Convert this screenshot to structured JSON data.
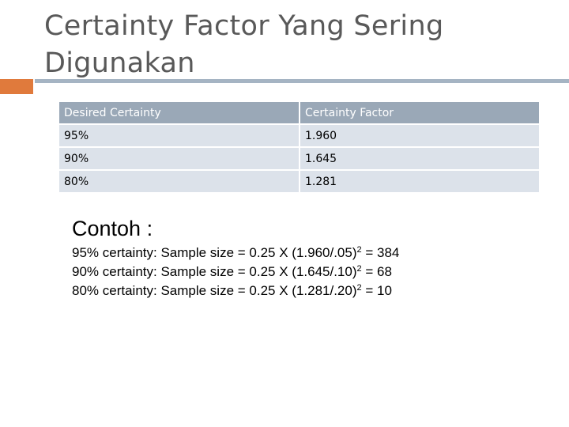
{
  "slide": {
    "title": "Certainty Factor Yang Sering Digunakan"
  },
  "table": {
    "headers": [
      "Desired Certainty",
      "Certainty Factor"
    ],
    "rows": [
      [
        "95%",
        "1.960"
      ],
      [
        "90%",
        "1.645"
      ],
      [
        "80%",
        "1.281"
      ]
    ]
  },
  "example": {
    "title": "Contoh :",
    "lines": [
      {
        "text": "95% certainty: Sample size = 0.25 X (1.960/.05)",
        "sup": "2",
        "result": " = 384"
      },
      {
        "text": "90% certainty: Sample size = 0.25 X (1.645/.10)",
        "sup": "2",
        "result": " = 68"
      },
      {
        "text": "80% certainty: Sample size = 0.25 X (1.281/.20)",
        "sup": "2",
        "result": " = 10"
      }
    ]
  },
  "colors": {
    "accent": "#E07A3C",
    "rule": "#A5B4C3",
    "header_fill": "#9AA8B7",
    "row_fill": "#DCE2EA",
    "title_text": "#595959"
  }
}
